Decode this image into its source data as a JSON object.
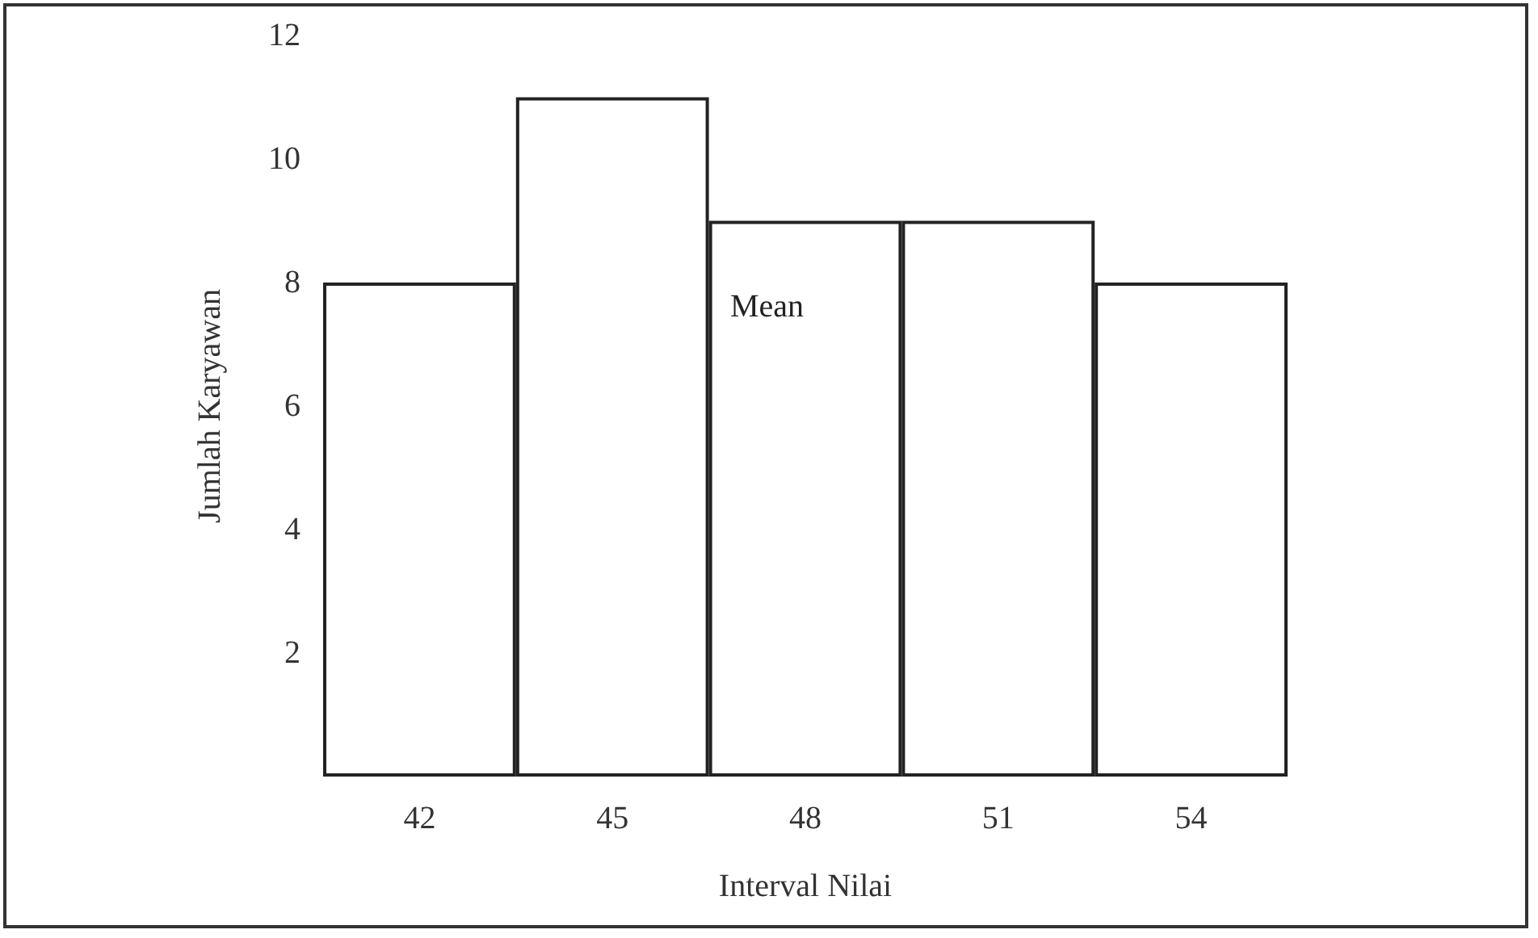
{
  "chart_data": {
    "type": "bar",
    "xlabel": "Interval Nilai",
    "ylabel": "Jumlah Karyawan",
    "categories": [
      "42",
      "45",
      "48",
      "51",
      "54"
    ],
    "values": [
      8,
      11,
      9,
      9,
      8
    ],
    "color": "#ffffff",
    "ylim": [
      0,
      12
    ],
    "yticks": [
      2,
      4,
      6,
      8,
      10,
      12
    ],
    "grid": false,
    "annotations": [
      "Mean"
    ]
  }
}
